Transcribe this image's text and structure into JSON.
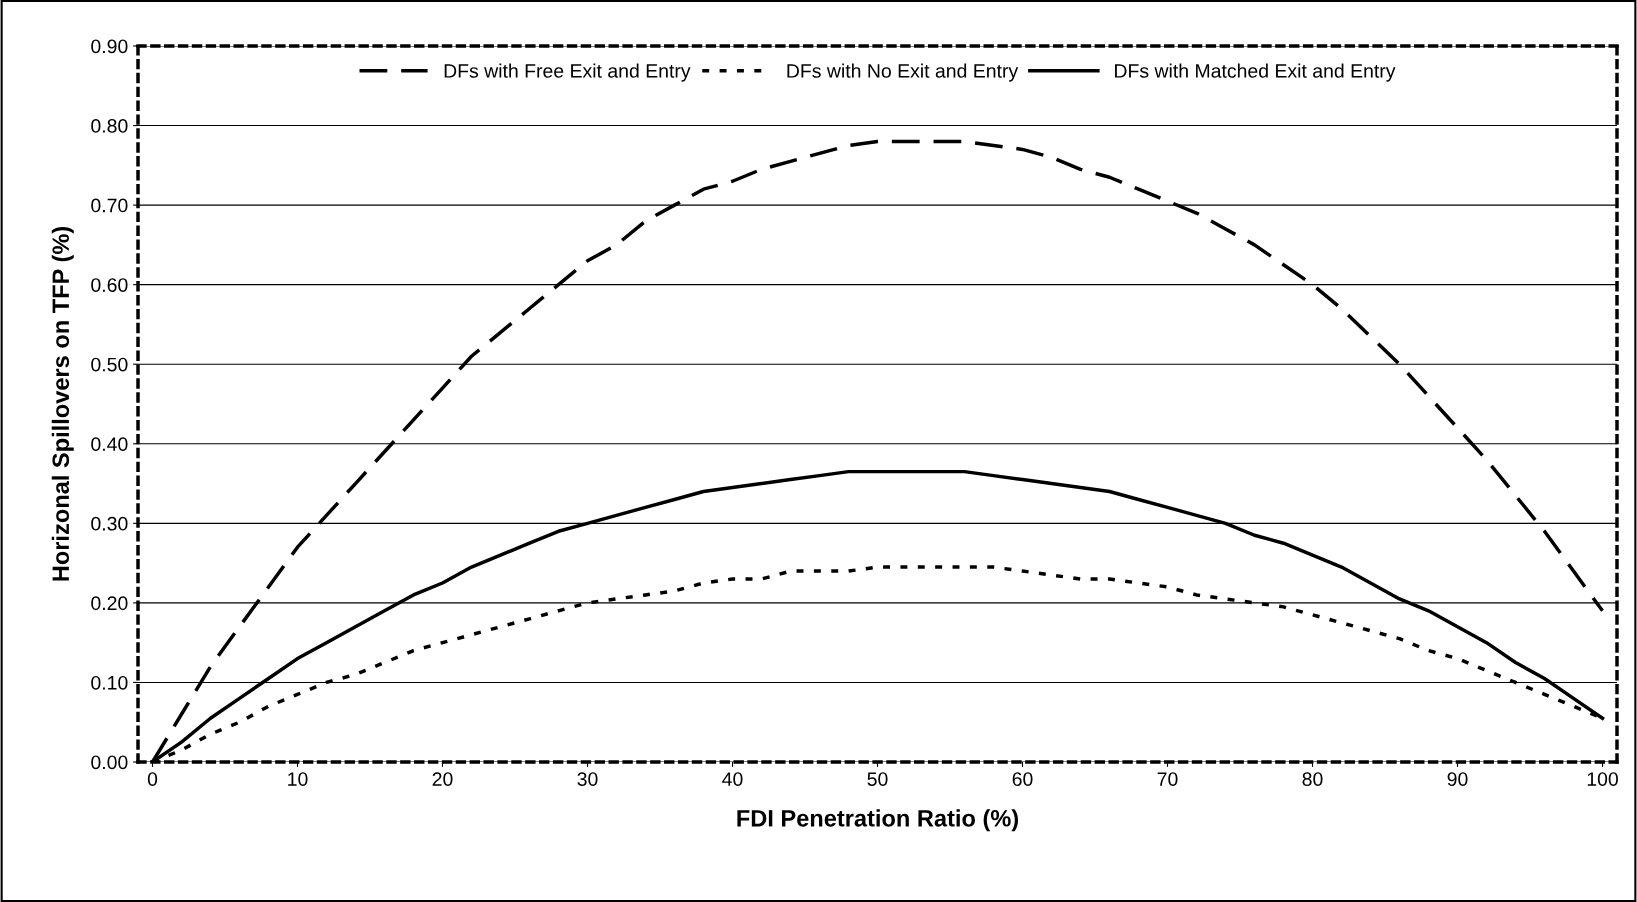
{
  "chart_data": {
    "type": "line",
    "xlabel": "FDI Penetration Ratio (%)",
    "ylabel": "Horizonal Spillovers on TFP (%)",
    "x": [
      0,
      2,
      4,
      6,
      8,
      10,
      12,
      14,
      16,
      18,
      20,
      22,
      24,
      26,
      28,
      30,
      32,
      34,
      36,
      38,
      40,
      42,
      44,
      46,
      48,
      50,
      52,
      54,
      56,
      58,
      60,
      62,
      64,
      66,
      68,
      70,
      72,
      74,
      76,
      78,
      80,
      82,
      84,
      86,
      88,
      90,
      92,
      94,
      96,
      98,
      100
    ],
    "series": [
      {
        "name": "DFs with Free Exit and Entry",
        "color": "#000000",
        "line_style": "dashed",
        "values": [
          0,
          0.06,
          0.12,
          0.17,
          0.22,
          0.27,
          0.31,
          0.35,
          0.39,
          0.43,
          0.47,
          0.51,
          0.54,
          0.57,
          0.6,
          0.63,
          0.65,
          0.68,
          0.7,
          0.72,
          0.73,
          0.745,
          0.755,
          0.765,
          0.775,
          0.78,
          0.78,
          0.78,
          0.78,
          0.775,
          0.77,
          0.76,
          0.745,
          0.735,
          0.72,
          0.705,
          0.69,
          0.67,
          0.65,
          0.625,
          0.6,
          0.57,
          0.535,
          0.5,
          0.46,
          0.42,
          0.38,
          0.335,
          0.29,
          0.24,
          0.19
        ]
      },
      {
        "name": "DFs with No Exit and Entry",
        "color": "#000000",
        "line_style": "dotted",
        "values": [
          0,
          0.015,
          0.035,
          0.05,
          0.07,
          0.085,
          0.1,
          0.11,
          0.125,
          0.14,
          0.15,
          0.16,
          0.17,
          0.18,
          0.19,
          0.2,
          0.205,
          0.21,
          0.215,
          0.225,
          0.23,
          0.23,
          0.24,
          0.24,
          0.24,
          0.245,
          0.245,
          0.245,
          0.245,
          0.245,
          0.24,
          0.235,
          0.23,
          0.23,
          0.225,
          0.22,
          0.21,
          0.205,
          0.2,
          0.195,
          0.185,
          0.175,
          0.165,
          0.155,
          0.14,
          0.13,
          0.115,
          0.1,
          0.085,
          0.07,
          0.055
        ]
      },
      {
        "name": "DFs with Matched Exit and Entry",
        "color": "#000000",
        "line_style": "solid",
        "values": [
          0,
          0.025,
          0.055,
          0.08,
          0.105,
          0.13,
          0.15,
          0.17,
          0.19,
          0.21,
          0.225,
          0.245,
          0.26,
          0.275,
          0.29,
          0.3,
          0.31,
          0.32,
          0.33,
          0.34,
          0.345,
          0.35,
          0.355,
          0.36,
          0.365,
          0.365,
          0.365,
          0.365,
          0.365,
          0.36,
          0.355,
          0.35,
          0.345,
          0.34,
          0.33,
          0.32,
          0.31,
          0.3,
          0.285,
          0.275,
          0.26,
          0.245,
          0.225,
          0.205,
          0.19,
          0.17,
          0.15,
          0.125,
          0.105,
          0.08,
          0.055
        ]
      }
    ],
    "xlim": [
      -1,
      101
    ],
    "xticks": [
      0,
      10,
      20,
      30,
      40,
      50,
      60,
      70,
      80,
      90,
      100
    ],
    "ylim": [
      0,
      0.9
    ],
    "yticks": [
      {
        "value": 0,
        "label": "0.00"
      },
      {
        "value": 0.1,
        "label": "0.10"
      },
      {
        "value": 0.2,
        "label": "0.20"
      },
      {
        "value": 0.3,
        "label": "0.30"
      },
      {
        "value": 0.4,
        "label": "0.40"
      },
      {
        "value": 0.5,
        "label": "0.50"
      },
      {
        "value": 0.6,
        "label": "0.60"
      },
      {
        "value": 0.7,
        "label": "0.70"
      },
      {
        "value": 0.8,
        "label": "0.80"
      },
      {
        "value": 0.9,
        "label": "0.90"
      }
    ],
    "grid": "y",
    "legend": "top",
    "marker": "none"
  }
}
